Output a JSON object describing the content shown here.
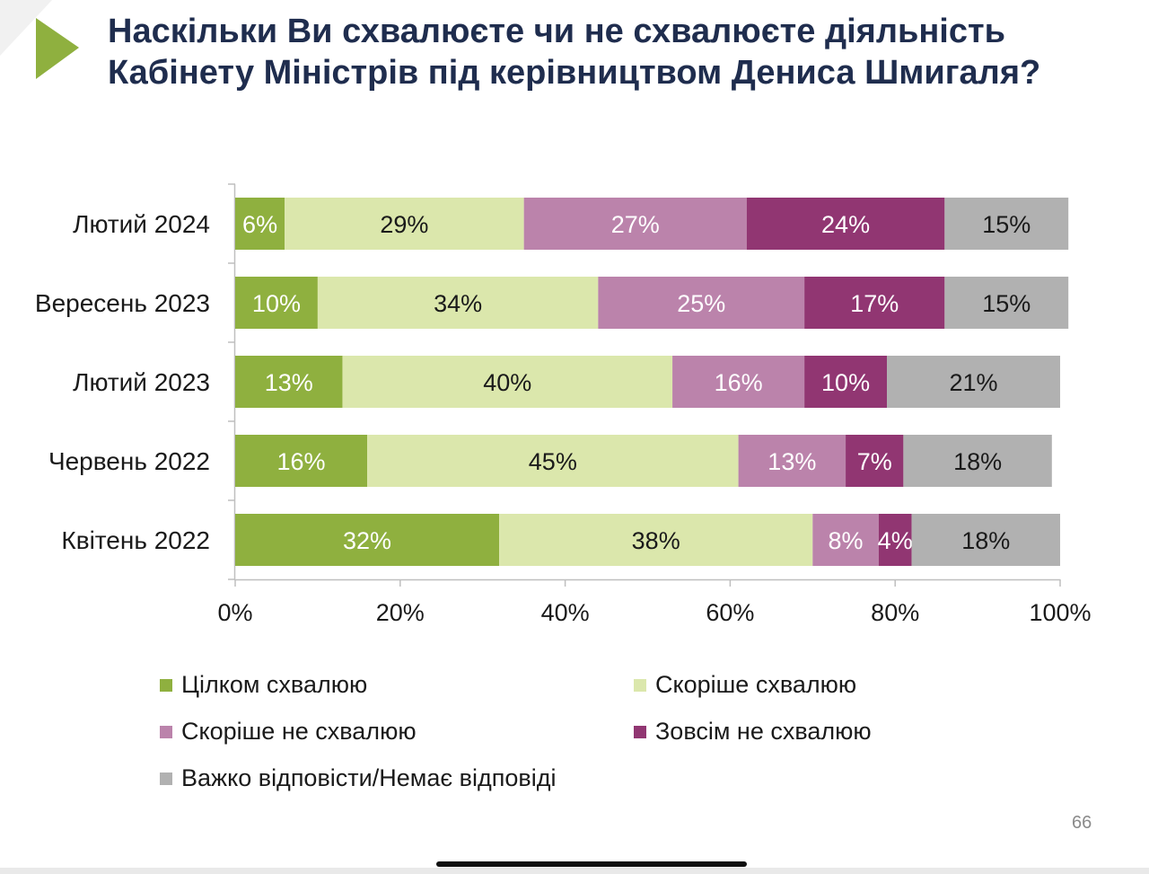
{
  "slide": {
    "title_lines": [
      "Наскільки Ви схвалюєте чи не схвалюєте діяльність",
      "Кабінету Міністрів під керівництвом Дениса Шмигаля?"
    ],
    "page_number": "66",
    "accent_color": "#8fb03f",
    "title_color": "#1f2d4e"
  },
  "chart_data": {
    "type": "bar",
    "orientation": "horizontal",
    "stacked": true,
    "title": "",
    "xlabel": "",
    "ylabel": "",
    "xlim": [
      0,
      100
    ],
    "x_ticks": [
      "0%",
      "20%",
      "40%",
      "60%",
      "80%",
      "100%"
    ],
    "grid": false,
    "legend_position": "bottom",
    "categories": [
      "Лютий 2024",
      "Вересень 2023",
      "Лютий 2023",
      "Червень 2022",
      "Квітень 2022"
    ],
    "series": [
      {
        "name": "Цілком схвалюю",
        "color": "#8fb03f",
        "label_color": "#ffffff",
        "values": [
          6,
          10,
          13,
          16,
          32
        ]
      },
      {
        "name": "Скоріше схвалюю",
        "color": "#dbe7ac",
        "label_color": "#1a1a1a",
        "values": [
          29,
          34,
          40,
          45,
          38
        ]
      },
      {
        "name": "Скоріше не схвалюю",
        "color": "#bb83ab",
        "label_color": "#ffffff",
        "values": [
          27,
          25,
          16,
          13,
          8
        ]
      },
      {
        "name": "Зовсім не схвалюю",
        "color": "#913672",
        "label_color": "#ffffff",
        "values": [
          24,
          17,
          10,
          7,
          4
        ]
      },
      {
        "name": "Важко відповісти/Немає відповіді",
        "color": "#b1b1b1",
        "label_color": "#1a1a1a",
        "values": [
          15,
          15,
          21,
          18,
          18
        ]
      }
    ],
    "data_labels": [
      [
        "6%",
        "10%",
        "13%",
        "16%",
        "32%"
      ],
      [
        "29%",
        "34%",
        "40%",
        "45%",
        "38%"
      ],
      [
        "27%",
        "25%",
        "16%",
        "13%",
        "8%"
      ],
      [
        "24%",
        "17%",
        "10%",
        "7%",
        "4%"
      ],
      [
        "15%",
        "15%",
        "21%",
        "18%",
        "18%"
      ]
    ]
  }
}
